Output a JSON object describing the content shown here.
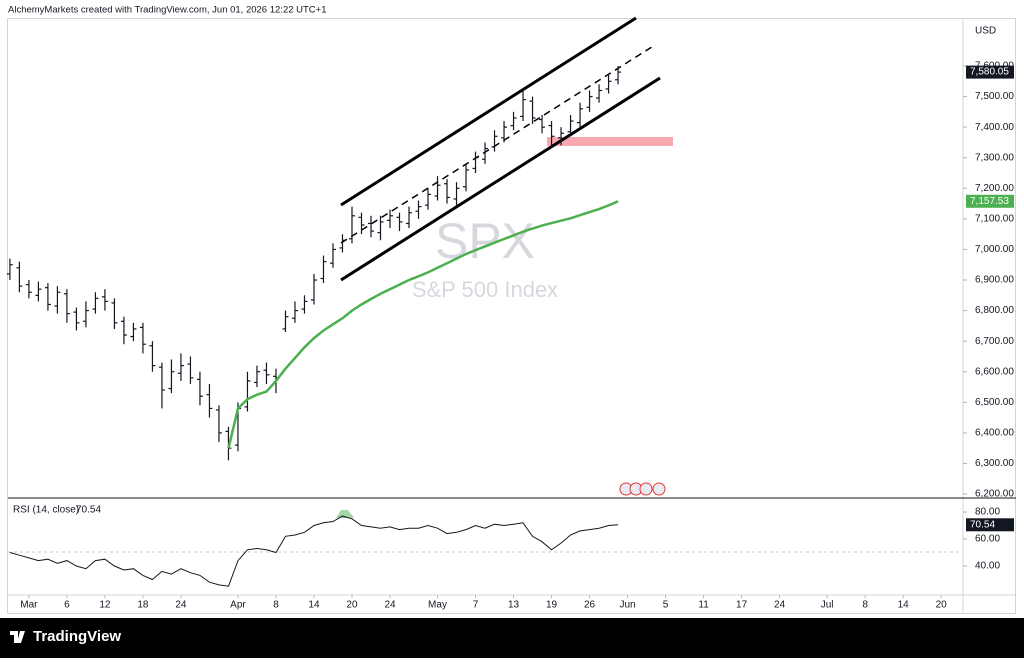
{
  "header": {
    "text": "AlchemyMarkets created with TradingView.com, Jun 01, 2026 12:22 UTC+1"
  },
  "footer": {
    "brand": "TradingView"
  },
  "chart_data": [
    {
      "type": "ohlc",
      "title": "SPX",
      "subtitle": "S&P 500 Index",
      "y_label": "USD",
      "color": "#131722",
      "open": [
        6920,
        6940,
        6885,
        6850,
        6875,
        6815,
        6855,
        6795,
        6765,
        6805,
        6845,
        6825,
        6765,
        6715,
        6745,
        6685,
        6615,
        6545,
        6595,
        6625,
        6575,
        6525,
        6475,
        6405,
        6360,
        6485,
        6565,
        6605,
        6585,
        6740,
        6775,
        6805,
        6835,
        6905,
        6955,
        7005,
        7035,
        7105,
        7085,
        7055,
        7095,
        7105,
        7085,
        7125,
        7145,
        7175,
        7215,
        7165,
        7205,
        7265,
        7295,
        7335,
        7365,
        7405,
        7435,
        7485,
        7425,
        7405,
        7365,
        7385,
        7415,
        7465,
        7495,
        7525,
        7555
      ],
      "high": [
        6970,
        6960,
        6900,
        6895,
        6890,
        6880,
        6870,
        6810,
        6830,
        6860,
        6870,
        6840,
        6780,
        6760,
        6760,
        6700,
        6630,
        6640,
        6660,
        6650,
        6600,
        6560,
        6490,
        6420,
        6500,
        6600,
        6620,
        6630,
        6610,
        6800,
        6830,
        6850,
        6920,
        6980,
        7020,
        7050,
        7140,
        7120,
        7110,
        7110,
        7130,
        7120,
        7140,
        7160,
        7200,
        7240,
        7230,
        7220,
        7280,
        7320,
        7350,
        7390,
        7420,
        7450,
        7520,
        7500,
        7440,
        7420,
        7400,
        7440,
        7480,
        7520,
        7540,
        7570,
        7600
      ],
      "low": [
        6900,
        6860,
        6840,
        6830,
        6800,
        6790,
        6760,
        6735,
        6745,
        6790,
        6800,
        6740,
        6690,
        6700,
        6660,
        6600,
        6480,
        6530,
        6570,
        6560,
        6490,
        6450,
        6370,
        6310,
        6340,
        6470,
        6550,
        6560,
        6530,
        6730,
        6760,
        6790,
        6820,
        6890,
        6940,
        6990,
        7020,
        7050,
        7040,
        7030,
        7070,
        7060,
        7070,
        7100,
        7130,
        7160,
        7150,
        7140,
        7190,
        7250,
        7280,
        7320,
        7350,
        7390,
        7420,
        7410,
        7380,
        7340,
        7340,
        7370,
        7400,
        7450,
        7480,
        7510,
        7540
      ],
      "close": [
        6950,
        6880,
        6860,
        6870,
        6820,
        6860,
        6790,
        6760,
        6800,
        6840,
        6830,
        6760,
        6720,
        6740,
        6690,
        6620,
        6540,
        6600,
        6620,
        6580,
        6520,
        6480,
        6400,
        6350,
        6480,
        6570,
        6600,
        6590,
        6580,
        6780,
        6800,
        6830,
        6900,
        6960,
        7000,
        7030,
        7110,
        7080,
        7060,
        7090,
        7110,
        7090,
        7120,
        7140,
        7180,
        7210,
        7170,
        7200,
        7260,
        7300,
        7330,
        7370,
        7400,
        7430,
        7490,
        7430,
        7400,
        7370,
        7380,
        7420,
        7460,
        7500,
        7520,
        7550,
        7580.05
      ],
      "last_label": {
        "value": 7580.05,
        "label": "7,580.05"
      },
      "ma": {
        "color": "#4caf50",
        "values": [
          null,
          null,
          null,
          null,
          null,
          null,
          null,
          null,
          null,
          null,
          null,
          null,
          null,
          null,
          null,
          null,
          null,
          null,
          null,
          null,
          null,
          null,
          null,
          6350,
          6480,
          6510,
          6525,
          6535,
          6570,
          6610,
          6645,
          6680,
          6710,
          6735,
          6755,
          6775,
          6800,
          6820,
          6838,
          6855,
          6870,
          6885,
          6900,
          6912,
          6925,
          6940,
          6955,
          6970,
          6985,
          6998,
          7010,
          7022,
          7034,
          7046,
          7058,
          7068,
          7078,
          7086,
          7094,
          7102,
          7112,
          7122,
          7132,
          7144,
          7157.53
        ],
        "last_label": {
          "value": 7157.53,
          "label": "7,157.53"
        }
      },
      "xlim": [
        -0.2,
        100.3
      ],
      "ylim": [
        6187,
        7757
      ],
      "yticks": [
        {
          "value": 6200,
          "label": "6,200.00"
        },
        {
          "value": 6300,
          "label": "6,300.00"
        },
        {
          "value": 6400,
          "label": "6,400.00"
        },
        {
          "value": 6500,
          "label": "6,500.00"
        },
        {
          "value": 6600,
          "label": "6,600.00"
        },
        {
          "value": 6700,
          "label": "6,700.00"
        },
        {
          "value": 6800,
          "label": "6,800.00"
        },
        {
          "value": 6900,
          "label": "6,900.00"
        },
        {
          "value": 7000,
          "label": "7,000.00"
        },
        {
          "value": 7100,
          "label": "7,100.00"
        },
        {
          "value": 7200,
          "label": "7,200.00"
        },
        {
          "value": 7300,
          "label": "7,300.00"
        },
        {
          "value": 7400,
          "label": "7,400.00"
        },
        {
          "value": 7500,
          "label": "7,500.00"
        },
        {
          "value": 7600,
          "label": "7,600.00"
        }
      ]
    },
    {
      "type": "line",
      "title": "RSI (14, close)",
      "color": "#131722",
      "values": [
        50,
        48,
        46,
        44,
        45,
        42,
        44,
        40,
        38,
        44,
        45,
        40,
        37,
        38,
        33,
        30,
        36,
        34,
        38,
        35,
        33,
        28,
        26,
        25,
        44,
        52,
        53,
        52,
        50,
        62,
        63,
        65,
        70,
        72,
        73,
        77,
        75,
        70,
        69,
        68,
        69,
        67,
        68,
        68,
        70,
        68,
        64,
        65,
        67,
        70,
        68,
        71,
        70,
        71,
        72,
        62,
        58,
        52,
        57,
        63,
        66,
        67,
        68,
        70,
        70.54
      ],
      "xlim": [
        -0.2,
        100.3
      ],
      "ylim": [
        18.5,
        90.4
      ],
      "yticks": [
        {
          "value": 40,
          "label": "40.00"
        },
        {
          "value": 60,
          "label": "60.00"
        },
        {
          "value": 80,
          "label": "80.00"
        }
      ],
      "xticks": [
        {
          "value": 2,
          "label": "Mar"
        },
        {
          "value": 6,
          "label": "6"
        },
        {
          "value": 10,
          "label": "12"
        },
        {
          "value": 14,
          "label": "18"
        },
        {
          "value": 18,
          "label": "24"
        },
        {
          "value": 24,
          "label": "Apr"
        },
        {
          "value": 28,
          "label": "8"
        },
        {
          "value": 32,
          "label": "14"
        },
        {
          "value": 36,
          "label": "20"
        },
        {
          "value": 40,
          "label": "24"
        },
        {
          "value": 45,
          "label": "May"
        },
        {
          "value": 49,
          "label": "7"
        },
        {
          "value": 53,
          "label": "13"
        },
        {
          "value": 57,
          "label": "19"
        },
        {
          "value": 61,
          "label": "26"
        },
        {
          "value": 65,
          "label": "Jun"
        },
        {
          "value": 69,
          "label": "5"
        },
        {
          "value": 73,
          "label": "11"
        },
        {
          "value": 77,
          "label": "17"
        },
        {
          "value": 81,
          "label": "24"
        },
        {
          "value": 86,
          "label": "Jul"
        },
        {
          "value": 90,
          "label": "8"
        },
        {
          "value": 94,
          "label": "14"
        },
        {
          "value": 98,
          "label": "20"
        }
      ]
    }
  ]
}
